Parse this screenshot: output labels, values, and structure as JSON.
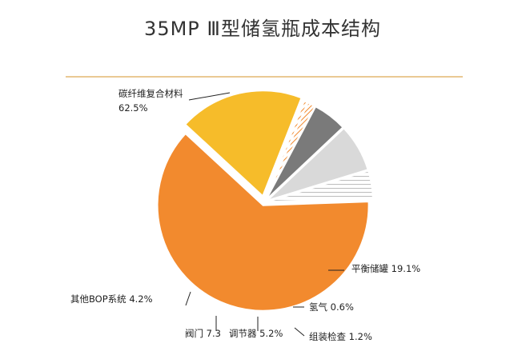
{
  "chart_data": {
    "type": "pie",
    "title": "35MP Ⅲ型储氢瓶成本结构",
    "slices": [
      {
        "label": "碳纤维复合材料",
        "percent_label": "62.5%",
        "value": 62.5,
        "color": "#F28A2E",
        "pattern": "solid"
      },
      {
        "label": "平衡储罐",
        "percent_label": "19.1%",
        "value": 19.1,
        "color": "#F6BC2A",
        "pattern": "solid"
      },
      {
        "label": "氢气",
        "percent_label": "0.6%",
        "value": 0.6,
        "color": "#F28A2E",
        "pattern": "diagonal-stripe"
      },
      {
        "label": "组装检查",
        "percent_label": "1.2%",
        "value": 1.2,
        "color": "#F28A2E",
        "pattern": "diagonal-stripe"
      },
      {
        "label": "调节器",
        "percent_label": "5.2%",
        "value": 5.2,
        "color": "#7A7A7A",
        "pattern": "solid"
      },
      {
        "label": "阀门",
        "percent_label": "7.3%",
        "value": 7.3,
        "color": "#D9D9D9",
        "pattern": "solid"
      },
      {
        "label": "其他BOP系统",
        "percent_label": "4.2%",
        "value": 4.2,
        "color": "#BFBFBF",
        "pattern": "light-stripe"
      }
    ],
    "label_texts": {
      "carbon": [
        "碳纤维复合材料",
        "62.5%"
      ],
      "tank": "平衡储罐 19.1%",
      "hydrogen": "氢气 0.6%",
      "assembly": "组装检查 1.2%",
      "regulator": "调节器 5.2%",
      "valve": "阀门 7.3",
      "bop": "其他BOP系统 4.2%"
    },
    "legend": "none",
    "header_rule_color": "#E3B770"
  }
}
